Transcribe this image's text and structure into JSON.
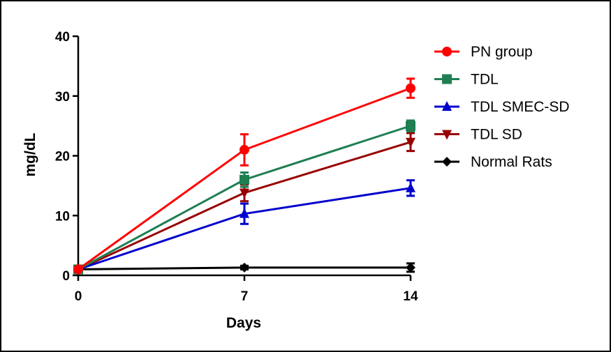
{
  "chart_data": {
    "type": "line",
    "title": "",
    "xlabel": "Days",
    "ylabel": "mg/dL",
    "x": [
      0,
      7,
      14
    ],
    "x_ticks": [
      "0",
      "7",
      "14"
    ],
    "y_ticks": [
      "0",
      "10",
      "20",
      "30",
      "40"
    ],
    "xlim": [
      0,
      14
    ],
    "ylim": [
      0,
      40
    ],
    "grid": false,
    "legend_position": "right",
    "series": [
      {
        "name": "PN group",
        "color": "#ff0000",
        "marker": "circle",
        "values": [
          1.0,
          21.0,
          31.3
        ],
        "errors": [
          0.3,
          2.6,
          1.6
        ]
      },
      {
        "name": "TDL",
        "color": "#1f7f52",
        "marker": "square",
        "values": [
          1.0,
          16.0,
          25.0
        ],
        "errors": [
          0.3,
          1.2,
          0.9
        ]
      },
      {
        "name": "TDL SMEC-SD",
        "color": "#0000cc",
        "marker": "triangle-up",
        "values": [
          1.0,
          10.3,
          14.6
        ],
        "errors": [
          0.3,
          1.7,
          1.3
        ]
      },
      {
        "name": "TDL SD",
        "color": "#990000",
        "marker": "triangle-down",
        "values": [
          1.0,
          13.8,
          22.3
        ],
        "errors": [
          0.3,
          1.4,
          1.5
        ]
      },
      {
        "name": "Normal Rats",
        "color": "#000000",
        "marker": "diamond",
        "values": [
          1.0,
          1.3,
          1.3
        ],
        "errors": [
          0.3,
          0.3,
          0.7
        ]
      }
    ]
  }
}
